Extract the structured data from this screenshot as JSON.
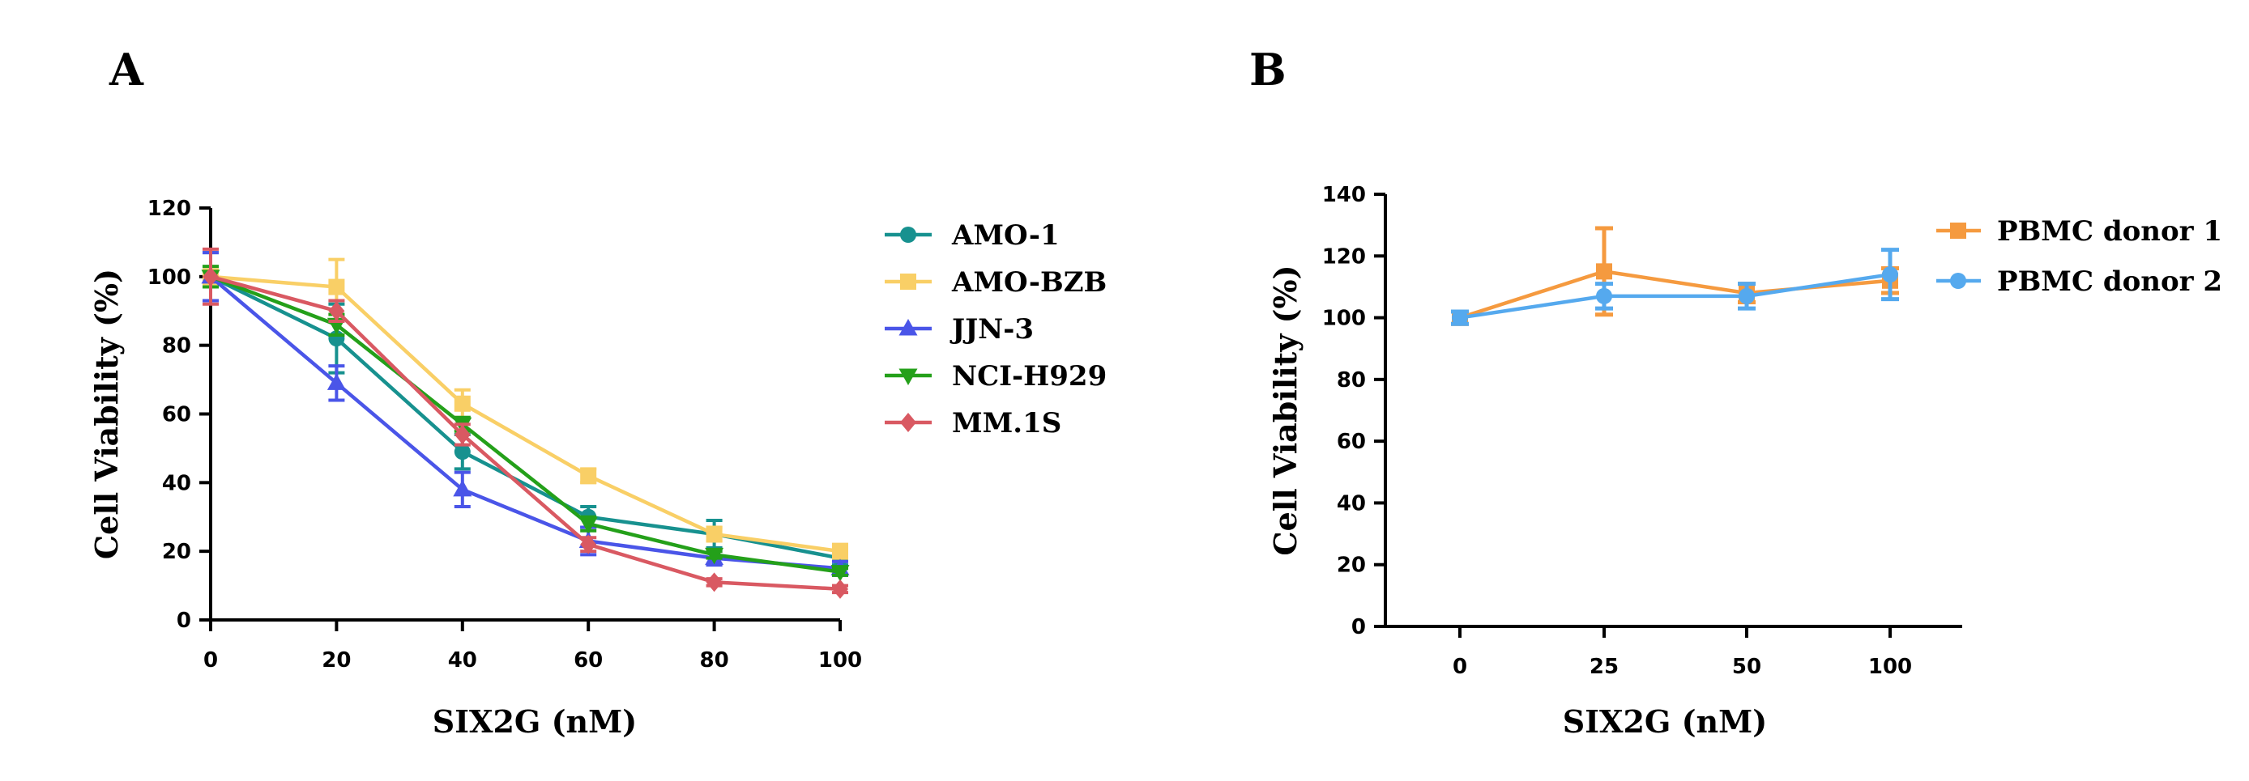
{
  "chart_data": [
    {
      "id": "A",
      "panel_label": "A",
      "type": "line",
      "xlabel": "SIX2G (nM)",
      "ylabel": "Cell Viability (%)",
      "x": [
        0,
        20,
        40,
        60,
        80,
        100
      ],
      "x_ticks": [
        "0",
        "20",
        "40",
        "60",
        "80",
        "100"
      ],
      "y_ticks": [
        "0",
        "20",
        "40",
        "60",
        "80",
        "100",
        "120"
      ],
      "xlim": [
        0,
        100
      ],
      "ylim": [
        0,
        120
      ],
      "legend_position": "right",
      "series": [
        {
          "name": "AMO-1",
          "color": "#17918f",
          "marker": "circle",
          "values": [
            100,
            82,
            49,
            30,
            25,
            18
          ],
          "errors": [
            7,
            10,
            5,
            3,
            4,
            2
          ]
        },
        {
          "name": "AMO-BZB",
          "color": "#f9cf66",
          "marker": "square",
          "values": [
            100,
            97,
            63,
            42,
            25,
            20
          ],
          "errors": [
            2,
            8,
            4,
            2,
            2,
            2
          ]
        },
        {
          "name": "JJN-3",
          "color": "#4a55e8",
          "marker": "triangle-up",
          "values": [
            100,
            69,
            38,
            23,
            18,
            15
          ],
          "errors": [
            7,
            5,
            5,
            4,
            2,
            2
          ]
        },
        {
          "name": "NCI-H929",
          "color": "#24a01a",
          "marker": "triangle-down",
          "values": [
            100,
            86,
            57,
            28,
            19,
            14
          ],
          "errors": [
            3,
            3,
            2,
            2,
            1,
            1
          ]
        },
        {
          "name": "MM.1S",
          "color": "#d95962",
          "marker": "diamond",
          "values": [
            100,
            90,
            54,
            22,
            11,
            9
          ],
          "errors": [
            8,
            3,
            3,
            2,
            1,
            1
          ]
        }
      ]
    },
    {
      "id": "B",
      "panel_label": "B",
      "type": "line",
      "xlabel": "SIX2G (nM)",
      "ylabel": "Cell Viability (%)",
      "categories": [
        "0",
        "25",
        "50",
        "100"
      ],
      "y_ticks": [
        "0",
        "20",
        "40",
        "60",
        "80",
        "100",
        "120",
        "140"
      ],
      "ylim": [
        0,
        140
      ],
      "legend_position": "top-right",
      "series": [
        {
          "name": "PBMC donor 1",
          "color": "#f59a3f",
          "marker": "square",
          "values": [
            100,
            115,
            108,
            112
          ],
          "errors": [
            2,
            14,
            3,
            4
          ]
        },
        {
          "name": "PBMC donor 2",
          "color": "#55a9ee",
          "marker": "circle",
          "values": [
            100,
            107,
            107,
            114
          ],
          "errors": [
            2,
            4,
            4,
            8
          ]
        }
      ]
    }
  ]
}
